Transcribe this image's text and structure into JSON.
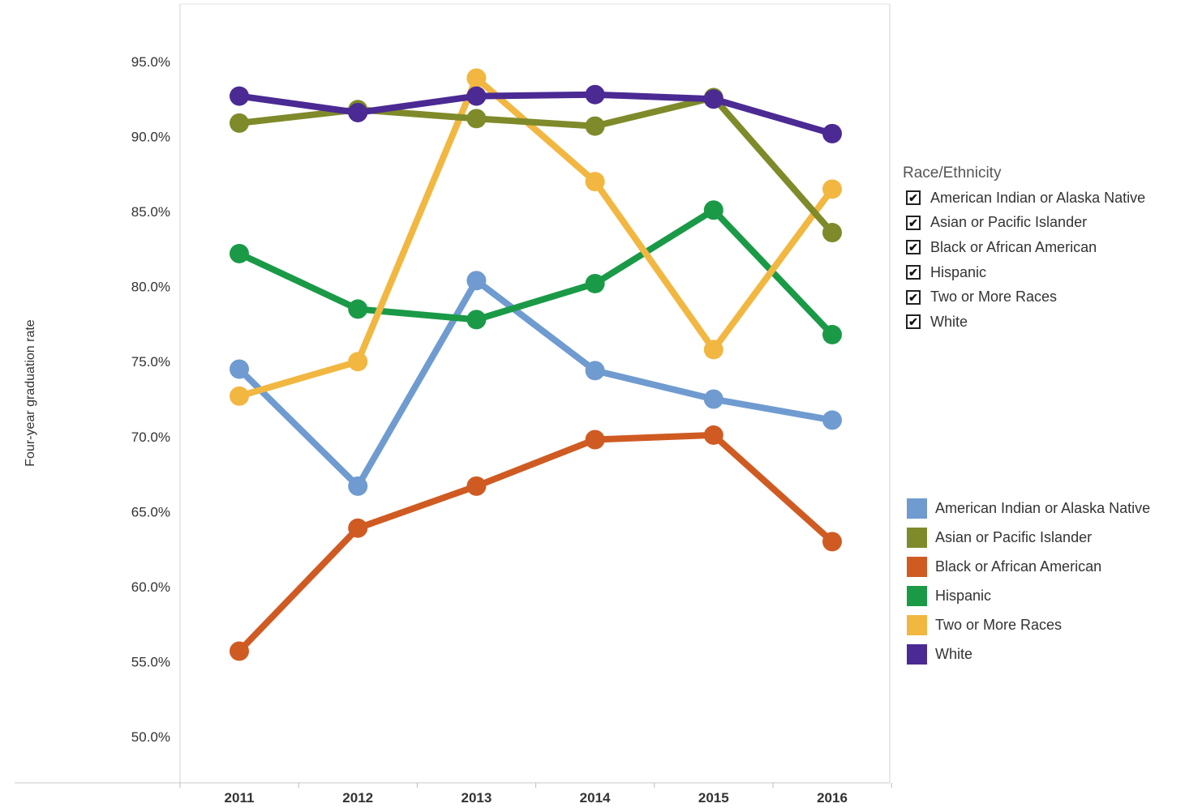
{
  "chart_data": {
    "type": "line",
    "title": "",
    "xlabel": "",
    "ylabel": "Four-year graduation rate",
    "x": [
      "2011",
      "2012",
      "2013",
      "2014",
      "2015",
      "2016"
    ],
    "y_ticks": [
      "50.0%",
      "55.0%",
      "60.0%",
      "65.0%",
      "70.0%",
      "75.0%",
      "80.0%",
      "85.0%",
      "90.0%",
      "95.0%"
    ],
    "ylim": [
      47.0,
      97.0
    ],
    "grid": false,
    "legend_position": "right",
    "series": [
      {
        "name": "American Indian or Alaska Native",
        "color": "#6f9bd0",
        "values": [
          74.5,
          66.7,
          80.4,
          74.4,
          72.5,
          71.1
        ]
      },
      {
        "name": "Black or African American",
        "color": "#cf5b23",
        "values": [
          55.7,
          63.9,
          66.7,
          69.8,
          70.1,
          63.0
        ]
      },
      {
        "name": "Hispanic",
        "color": "#1a9a47",
        "values": [
          82.2,
          78.5,
          77.8,
          80.2,
          85.1,
          76.8
        ]
      },
      {
        "name": "Two or More Races",
        "color": "#f1b741",
        "values": [
          72.7,
          75.0,
          93.9,
          87.0,
          75.8,
          86.5
        ]
      },
      {
        "name": "Asian or Pacific Islander",
        "color": "#7f8a2a",
        "values": [
          90.9,
          91.8,
          91.2,
          90.7,
          92.6,
          83.6
        ]
      },
      {
        "name": "White",
        "color": "#4b2a93",
        "values": [
          92.7,
          91.6,
          92.7,
          92.8,
          92.5,
          90.2
        ]
      }
    ]
  },
  "filter": {
    "title": "Race/Ethnicity",
    "check_glyph": "✔",
    "items": [
      "American Indian or Alaska Native",
      "Asian or Pacific Islander",
      "Black or African American",
      "Hispanic",
      "Two or More Races",
      "White"
    ]
  },
  "legend": {
    "items": [
      {
        "label": "American Indian or Alaska Native",
        "color": "#6f9bd0"
      },
      {
        "label": "Asian or Pacific Islander",
        "color": "#7f8a2a"
      },
      {
        "label": "Black or African American",
        "color": "#cf5b23"
      },
      {
        "label": "Hispanic",
        "color": "#1a9a47"
      },
      {
        "label": "Two or More Races",
        "color": "#f1b741"
      },
      {
        "label": "White",
        "color": "#4b2a93"
      }
    ]
  }
}
